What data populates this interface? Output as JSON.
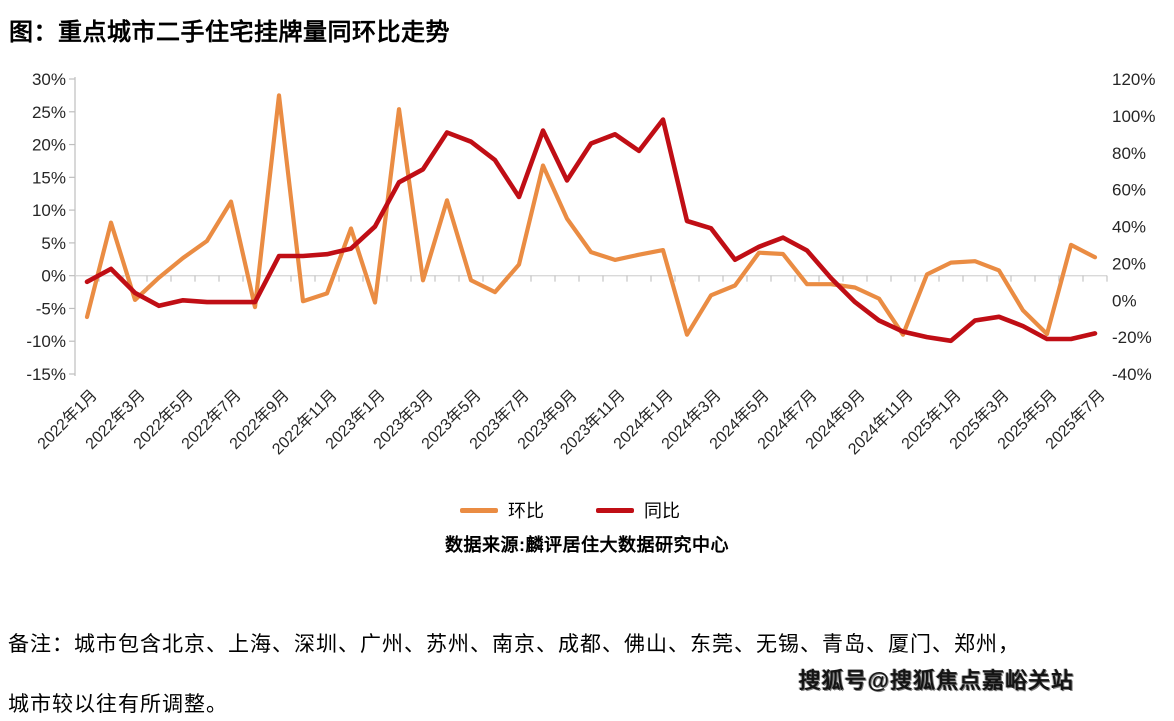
{
  "title": "图：重点城市二手住宅挂牌量同环比走势",
  "legend": {
    "mom": {
      "label": "环比",
      "color": "#EA8C43"
    },
    "yoy": {
      "label": "同比",
      "color": "#C00E15"
    }
  },
  "source": "数据来源:麟评居住大数据研究中心",
  "note": {
    "line1": "备注：城市包含北京、上海、深圳、广州、苏州、南京、成都、佛山、东莞、无锡、青岛、厦门、郑州，",
    "line2": "城市较以往有所调整。"
  },
  "watermark": "搜狐号@搜狐焦点嘉峪关站",
  "colors": {
    "mom_line": "#EA8C43",
    "yoy_line": "#C00E15",
    "gridline": "#D9D9D9",
    "axis_line": "#BFBFBF",
    "axis_text": "#262626"
  },
  "chart_data": {
    "type": "line",
    "title": "重点城市二手住宅挂牌量同环比走势",
    "categories": [
      "2022年1月",
      "2022年2月",
      "2022年3月",
      "2022年4月",
      "2022年5月",
      "2022年6月",
      "2022年7月",
      "2022年8月",
      "2022年9月",
      "2022年10月",
      "2022年11月",
      "2022年12月",
      "2023年1月",
      "2023年2月",
      "2023年3月",
      "2023年4月",
      "2023年5月",
      "2023年6月",
      "2023年7月",
      "2023年8月",
      "2023年9月",
      "2023年10月",
      "2023年11月",
      "2023年12月",
      "2024年1月",
      "2024年2月",
      "2024年3月",
      "2024年4月",
      "2024年5月",
      "2024年6月",
      "2024年7月",
      "2024年8月",
      "2024年9月",
      "2024年10月",
      "2024年11月",
      "2024年12月",
      "2025年1月",
      "2025年2月",
      "2025年3月",
      "2025年4月",
      "2025年5月",
      "2025年6月",
      "2025年7月"
    ],
    "visible_x_labels": [
      "2022年1月",
      "2022年3月",
      "2022年5月",
      "2022年7月",
      "2022年9月",
      "2022年11月",
      "2023年1月",
      "2023年3月",
      "2023年5月",
      "2023年7月",
      "2023年9月",
      "2023年11月",
      "2024年1月",
      "2024年3月",
      "2024年5月",
      "2024年7月",
      "2024年9月",
      "2024年11月",
      "2025年1月",
      "2025年3月",
      "2025年5月",
      "2025年7月"
    ],
    "series": [
      {
        "name": "环比",
        "axis": "left",
        "color": "#EA8C43",
        "values": [
          -6.3,
          8.1,
          -3.7,
          -0.3,
          2.7,
          5.3,
          11.3,
          -4.8,
          27.5,
          -3.9,
          -2.7,
          7.2,
          -4.1,
          25.4,
          -0.7,
          11.5,
          -0.7,
          -2.5,
          1.7,
          16.8,
          8.7,
          3.6,
          2.4,
          3.2,
          3.9,
          -9.0,
          -3.0,
          -1.5,
          3.5,
          3.3,
          -1.3,
          -1.3,
          -1.8,
          -3.5,
          -9.0,
          0.2,
          2.0,
          2.2,
          0.8,
          -5.3,
          -8.9,
          4.7,
          2.8
        ]
      },
      {
        "name": "同比",
        "axis": "right",
        "color": "#C00E15",
        "values": [
          10,
          17,
          4,
          -3,
          0,
          -1,
          -1,
          -1,
          24,
          24,
          25,
          28,
          40,
          64,
          71,
          91,
          86,
          76,
          56,
          92,
          65,
          85,
          90,
          81,
          98,
          43,
          39,
          22,
          29,
          34,
          27,
          12,
          -1,
          -11,
          -17,
          -20,
          -22,
          -11,
          -9,
          -14,
          -21,
          -21,
          -18
        ]
      }
    ],
    "left_axis": {
      "min": -15,
      "max": 30,
      "step": 5,
      "ticks": [
        "30%",
        "25%",
        "20%",
        "15%",
        "10%",
        "5%",
        "0%",
        "-5%",
        "-10%",
        "-15%"
      ]
    },
    "right_axis": {
      "min": -40,
      "max": 120,
      "step": 20,
      "ticks": [
        "120%",
        "100%",
        "80%",
        "60%",
        "40%",
        "20%",
        "0%",
        "-20%",
        "-40%"
      ]
    },
    "grid": "only zero line of left axis",
    "legend_position": "bottom-center"
  }
}
